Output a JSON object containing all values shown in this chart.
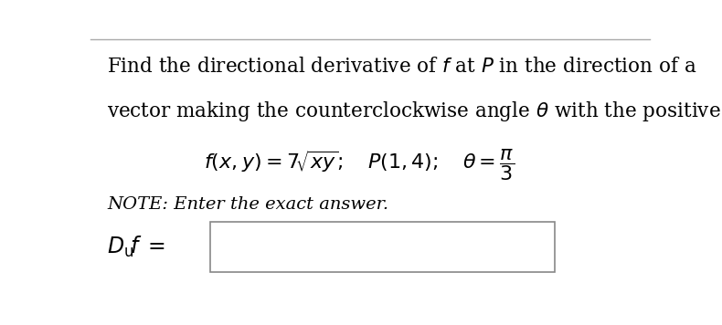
{
  "background_color": "#ffffff",
  "top_border_color": "#aaaaaa",
  "line1": "Find the directional derivative of $f$ at $P$ in the direction of a",
  "line2": "vector making the counterclockwise angle $\\theta$ with the positive $x$-axis.",
  "formula": "$f(x, y) = 7\\!\\sqrt{xy};\\quad P(1,4);\\quad \\theta = \\dfrac{\\pi}{3}$",
  "note": "NOTE: Enter the exact answer.",
  "text_color": "#000000",
  "main_fontsize": 15.5,
  "formula_fontsize": 16,
  "note_fontsize": 14,
  "answer_fontsize": 17
}
